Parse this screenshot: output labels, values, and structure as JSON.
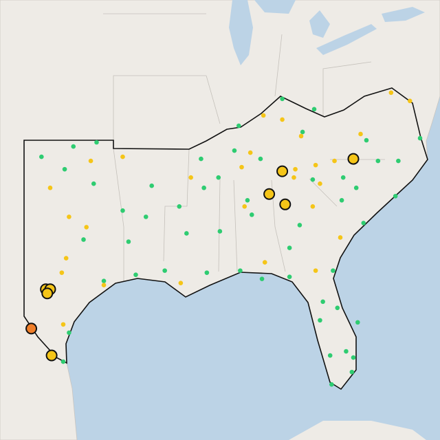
{
  "chart_data": {
    "type": "map",
    "series": [
      {
        "color": "#2ecc71",
        "outline": false,
        "lon": [
          -101.8,
          -99.6,
          -98.0,
          -100.2,
          -98.2,
          -94.2,
          -96.2,
          -94.6,
          -98.9,
          -95.8,
          -91.8,
          -92.3,
          -90.6,
          -90.8,
          -88.5,
          -88.2,
          -85.2,
          -83.0,
          -79.4,
          -75.7,
          -77.2,
          -78.6,
          -77.4,
          -81.0,
          -80.1,
          -81.1,
          -83.1,
          -84.0,
          -84.7,
          -87.3,
          -89.5,
          -95.3,
          -97.5,
          -93.3,
          -90.4,
          -88.1,
          -86.6,
          -84.7,
          -81.7,
          -82.4,
          -82.6,
          -81.4,
          -80.0,
          -80.8,
          -81.9,
          -80.3,
          -80.4,
          -81.8,
          -99.9,
          -100.3,
          -79.6,
          -89.6,
          -87.6,
          -86.7,
          -83.8
        ],
        "lat": [
          36.2,
          36.7,
          36.9,
          35.6,
          34.9,
          34.8,
          33.6,
          33.3,
          32.2,
          32.1,
          32.5,
          33.8,
          34.7,
          36.1,
          36.5,
          37.7,
          39.0,
          38.5,
          37.0,
          37.1,
          36.0,
          36.0,
          34.3,
          35.2,
          34.7,
          34.1,
          35.1,
          32.9,
          31.8,
          33.4,
          32.6,
          30.5,
          30.2,
          30.7,
          30.6,
          30.7,
          30.3,
          30.4,
          30.7,
          29.2,
          28.3,
          28.9,
          28.2,
          26.8,
          26.6,
          26.5,
          25.8,
          25.2,
          27.7,
          26.3,
          33.0,
          35.2,
          34.1,
          36.1,
          37.4
        ]
      },
      {
        "color": "#f5c518",
        "outline": false,
        "lon": [
          -101.2,
          -99.9,
          -98.7,
          -100.1,
          -100.4,
          -98.4,
          -96.2,
          -91.5,
          -92.2,
          -97.5,
          -100.3,
          -88.0,
          -87.8,
          -86.4,
          -86.5,
          -83.9,
          -79.8,
          -77.7,
          -76.4,
          -82.9,
          -84.3,
          -81.6,
          -82.6,
          -83.1,
          -84.4,
          -81.2,
          -82.9,
          -87.4,
          -85.2
        ],
        "lat": [
          34.7,
          33.3,
          32.8,
          31.3,
          30.6,
          36.0,
          36.2,
          35.2,
          30.1,
          30.0,
          28.1,
          35.7,
          33.8,
          31.1,
          38.2,
          37.2,
          37.3,
          39.3,
          38.9,
          35.8,
          35.6,
          36.0,
          34.9,
          33.8,
          35.2,
          32.3,
          30.7,
          36.4,
          38.0
        ]
      },
      {
        "color": "#f5c518",
        "outline": true,
        "lon": [
          -85.2,
          -86.1,
          -85.0,
          -80.3,
          -101.5,
          -101.2,
          -101.4,
          -101.1
        ],
        "lat": [
          35.5,
          34.4,
          33.9,
          36.1,
          29.8,
          29.8,
          29.6,
          26.6
        ]
      },
      {
        "color": "#f07f2a",
        "outline": true,
        "lon": [
          -102.5
        ],
        "lat": [
          27.9
        ]
      }
    ]
  }
}
